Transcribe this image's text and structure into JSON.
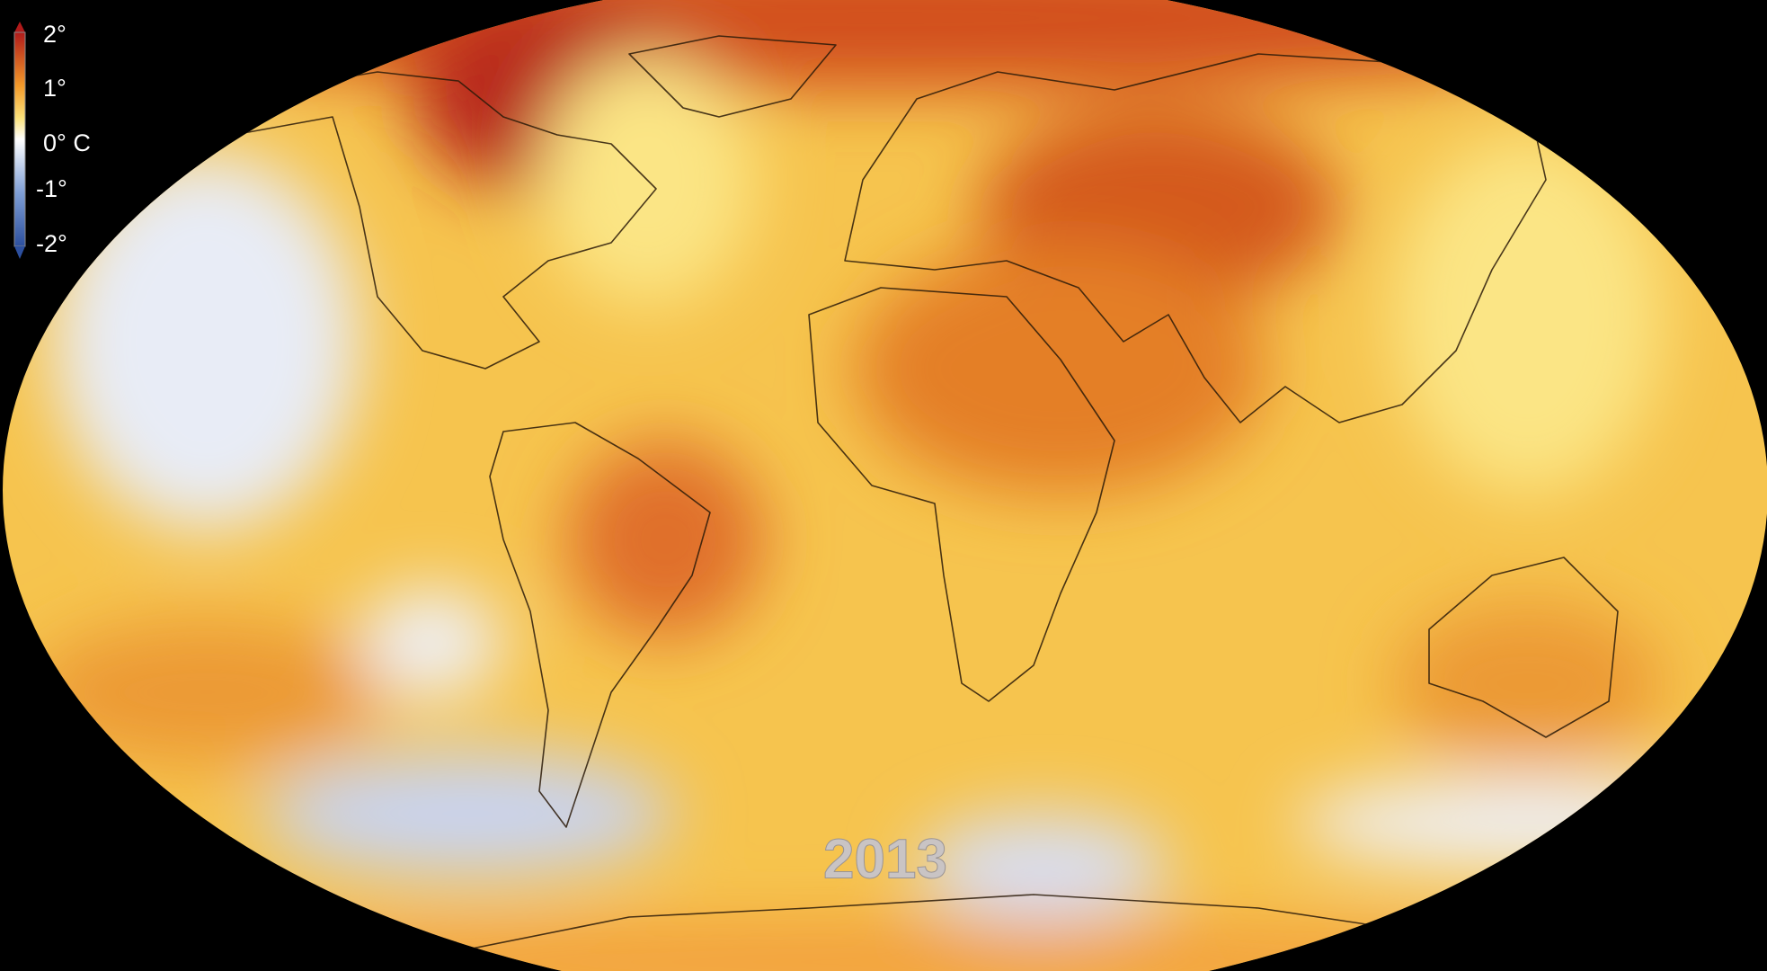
{
  "legend": {
    "labels": [
      "2°",
      "1°",
      "0° C",
      "-1°",
      "-2°"
    ]
  },
  "year": "2013"
}
